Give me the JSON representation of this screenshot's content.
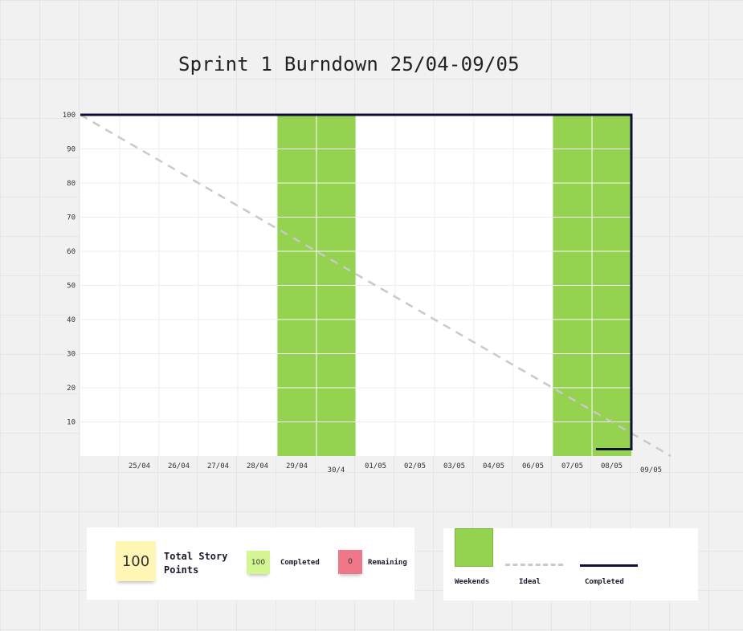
{
  "title": "Sprint 1 Burndown 25/04-09/05",
  "chart_data": {
    "type": "line",
    "title": "Sprint 1 Burndown 25/04-09/05",
    "ylim": [
      0,
      100
    ],
    "y_ticks": [
      100,
      90,
      80,
      70,
      60,
      50,
      40,
      30,
      20,
      10
    ],
    "x_labels": [
      "25/04",
      "26/04",
      "27/04",
      "28/04",
      "29/04",
      "30/4",
      "01/05",
      "02/05",
      "03/05",
      "04/05",
      "06/05",
      "07/05",
      "08/05",
      "09/05"
    ],
    "weekend_columns": [
      5,
      6,
      12,
      13
    ],
    "series": [
      {
        "name": "Ideal",
        "style": "dashed",
        "color": "#c9c9c9",
        "points": [
          [
            0,
            100
          ],
          [
            15,
            0
          ]
        ]
      },
      {
        "name": "Completed",
        "style": "solid",
        "color": "#0f0f3a",
        "points": [
          [
            0,
            100
          ],
          [
            1,
            100
          ],
          [
            14,
            100
          ],
          [
            14,
            2
          ],
          [
            13.1,
            2
          ]
        ]
      }
    ],
    "weekend_color": "#94d250",
    "grid": true
  },
  "summary": {
    "total_value": "100",
    "total_label": "Total Story Points",
    "completed_value": "100",
    "completed_label": "Completed",
    "remaining_value": "0",
    "remaining_label": "Remaining"
  },
  "legend": {
    "weekends": "Weekends",
    "ideal": "Ideal",
    "completed": "Completed"
  }
}
